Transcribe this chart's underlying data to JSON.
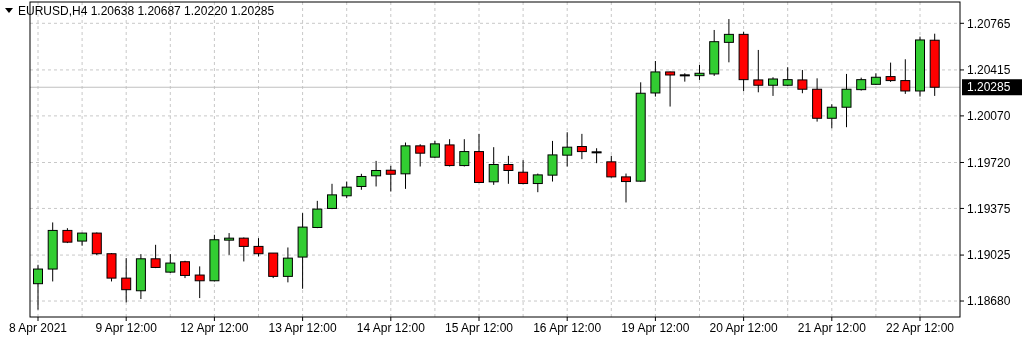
{
  "chart_data": {
    "type": "candlestick",
    "title": "EURUSD,H4  1.20638 1.20687 1.20220 1.20285",
    "categories": [
      "8 Apr 2021",
      null,
      null,
      null,
      null,
      null,
      "9 Apr 12:00",
      null,
      null,
      null,
      null,
      null,
      "12 Apr 12:00",
      null,
      null,
      null,
      null,
      null,
      "13 Apr 12:00",
      null,
      null,
      null,
      null,
      null,
      "14 Apr 12:00",
      null,
      null,
      null,
      null,
      null,
      "15 Apr 12:00",
      null,
      null,
      null,
      null,
      null,
      "16 Apr 12:00",
      null,
      null,
      null,
      null,
      null,
      "19 Apr 12:00",
      null,
      null,
      null,
      null,
      null,
      "20 Apr 12:00",
      null,
      null,
      null,
      null,
      null,
      "21 Apr 12:00",
      null,
      null,
      null,
      null,
      null,
      "22 Apr 12:00",
      null
    ],
    "ohlc": [
      [
        1.1881,
        1.18952,
        1.18615,
        1.1892
      ],
      [
        1.1892,
        1.1927,
        1.18827,
        1.1921
      ],
      [
        1.1921,
        1.19227,
        1.19115,
        1.19122
      ],
      [
        1.1913,
        1.19192,
        1.19095,
        1.1919
      ],
      [
        1.1919,
        1.19195,
        1.19025,
        1.19035
      ],
      [
        1.19035,
        1.1904,
        1.18827,
        1.18852
      ],
      [
        1.18852,
        1.19002,
        1.1867,
        1.18765
      ],
      [
        1.18757,
        1.19032,
        1.18695,
        1.18997
      ],
      [
        1.18997,
        1.19102,
        1.18927,
        1.18932
      ],
      [
        1.18897,
        1.19032,
        1.1889,
        1.18965
      ],
      [
        1.18975,
        1.18982,
        1.18852,
        1.18872
      ],
      [
        1.18875,
        1.1894,
        1.18702,
        1.18832
      ],
      [
        1.18832,
        1.19177,
        1.18827,
        1.1914
      ],
      [
        1.19137,
        1.1919,
        1.19027,
        1.19152
      ],
      [
        1.19152,
        1.19157,
        1.18977,
        1.1909
      ],
      [
        1.1909,
        1.19152,
        1.19015,
        1.19035
      ],
      [
        1.1904,
        1.1904,
        1.18852,
        1.18865
      ],
      [
        1.18865,
        1.19082,
        1.1882,
        1.19002
      ],
      [
        1.1901,
        1.1934,
        1.18772,
        1.19235
      ],
      [
        1.19232,
        1.19432,
        1.19227,
        1.1937
      ],
      [
        1.19375,
        1.1956,
        1.1937,
        1.19477
      ],
      [
        1.1947,
        1.19577,
        1.19452,
        1.19535
      ],
      [
        1.1954,
        1.19635,
        1.19515,
        1.19615
      ],
      [
        1.1962,
        1.19732,
        1.1954,
        1.1966
      ],
      [
        1.19662,
        1.19695,
        1.19502,
        1.19632
      ],
      [
        1.19635,
        1.1987,
        1.19522,
        1.19845
      ],
      [
        1.19845,
        1.19857,
        1.1969,
        1.1979
      ],
      [
        1.1976,
        1.19882,
        1.19755,
        1.1986
      ],
      [
        1.19852,
        1.19895,
        1.1969,
        1.19697
      ],
      [
        1.19697,
        1.19895,
        1.1969,
        1.19802
      ],
      [
        1.19802,
        1.19935,
        1.19565,
        1.1957
      ],
      [
        1.19575,
        1.19835,
        1.19552,
        1.19705
      ],
      [
        1.19705,
        1.1977,
        1.1956,
        1.1966
      ],
      [
        1.19647,
        1.19737,
        1.19557,
        1.19562
      ],
      [
        1.19562,
        1.19637,
        1.19497,
        1.19627
      ],
      [
        1.19625,
        1.19882,
        1.19577,
        1.19777
      ],
      [
        1.19775,
        1.19947,
        1.1969,
        1.19835
      ],
      [
        1.1984,
        1.19935,
        1.19745,
        1.19802
      ],
      [
        1.198,
        1.19827,
        1.19715,
        1.19798
      ],
      [
        1.19725,
        1.1977,
        1.19607,
        1.19612
      ],
      [
        1.19612,
        1.19637,
        1.1942,
        1.19577
      ],
      [
        1.1958,
        1.20322,
        1.19575,
        1.2024
      ],
      [
        1.20242,
        1.20482,
        1.20215,
        1.204
      ],
      [
        1.204,
        1.20402,
        1.2014,
        1.20377
      ],
      [
        1.20375,
        1.2039,
        1.20327,
        1.20378
      ],
      [
        1.20372,
        1.20452,
        1.2034,
        1.2039
      ],
      [
        1.20385,
        1.20715,
        1.2037,
        1.20627
      ],
      [
        1.20622,
        1.20797,
        1.20472,
        1.20682
      ],
      [
        1.20682,
        1.20702,
        1.20255,
        1.20342
      ],
      [
        1.2034,
        1.20565,
        1.20247,
        1.203
      ],
      [
        1.203,
        1.2036,
        1.2022,
        1.20347
      ],
      [
        1.203,
        1.20435,
        1.20295,
        1.20342
      ],
      [
        1.2034,
        1.20415,
        1.2024,
        1.2027
      ],
      [
        1.2027,
        1.20352,
        1.20027,
        1.20052
      ],
      [
        1.20052,
        1.20157,
        1.19977,
        1.20135
      ],
      [
        1.20135,
        1.20385,
        1.19985,
        1.2027
      ],
      [
        1.20267,
        1.20357,
        1.2026,
        1.20342
      ],
      [
        1.20307,
        1.2039,
        1.20302,
        1.2036
      ],
      [
        1.20365,
        1.2047,
        1.20325,
        1.20335
      ],
      [
        1.20335,
        1.20495,
        1.20235,
        1.20257
      ],
      [
        1.20257,
        1.20665,
        1.20215,
        1.2064
      ],
      [
        1.20638,
        1.20687,
        1.2022,
        1.20285
      ]
    ],
    "colors": [
      "#32cd32",
      "#32cd32",
      "#ff0000",
      "#32cd32",
      "#ff0000",
      "#ff0000",
      "#ff0000",
      "#32cd32",
      "#ff0000",
      "#32cd32",
      "#ff0000",
      "#ff0000",
      "#32cd32",
      "#32cd32",
      "#ff0000",
      "#ff0000",
      "#ff0000",
      "#32cd32",
      "#32cd32",
      "#32cd32",
      "#32cd32",
      "#32cd32",
      "#32cd32",
      "#32cd32",
      "#ff0000",
      "#32cd32",
      "#ff0000",
      "#32cd32",
      "#ff0000",
      "#32cd32",
      "#ff0000",
      "#32cd32",
      "#ff0000",
      "#ff0000",
      "#32cd32",
      "#32cd32",
      "#32cd32",
      "#ff0000",
      "#000000",
      "#ff0000",
      "#ff0000",
      "#32cd32",
      "#32cd32",
      "#ff0000",
      "#000000",
      "#32cd32",
      "#32cd32",
      "#32cd32",
      "#ff0000",
      "#ff0000",
      "#32cd32",
      "#32cd32",
      "#ff0000",
      "#ff0000",
      "#32cd32",
      "#32cd32",
      "#32cd32",
      "#32cd32",
      "#ff0000",
      "#ff0000",
      "#32cd32",
      "#ff0000"
    ],
    "ylim": [
      1.1856,
      1.20925
    ],
    "yticks": [
      1.20765,
      1.20415,
      {
        "value": 1.2007,
        "label": "1.20070"
      },
      {
        "value": 1.1972,
        "label": "1.19720"
      },
      1.19375,
      1.19025,
      {
        "value": 1.1868,
        "label": "1.18680"
      }
    ],
    "ref_lines": [
      {
        "axis": "y",
        "value": 1.20285,
        "label": "1.20285",
        "color": "#c0c0c0"
      }
    ],
    "grid": true
  }
}
